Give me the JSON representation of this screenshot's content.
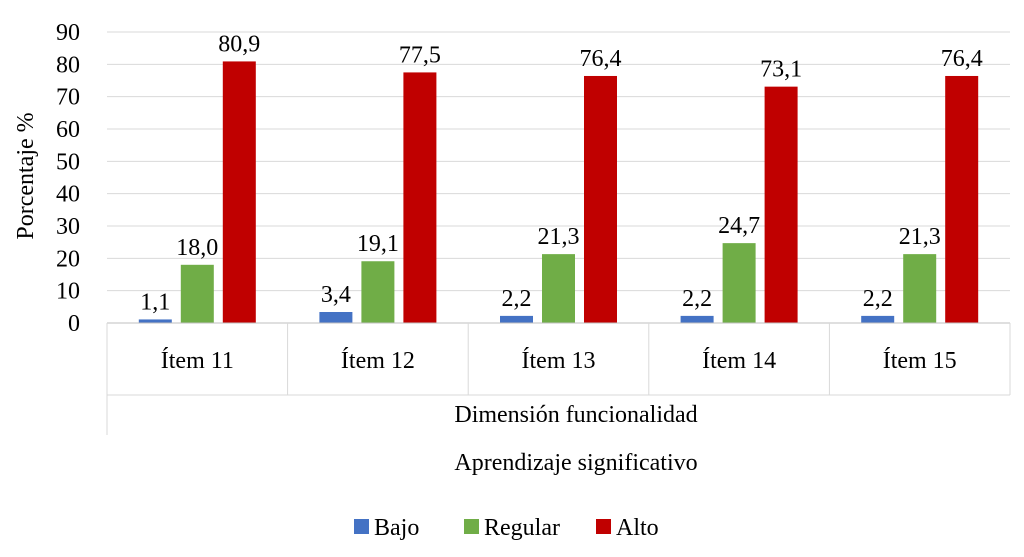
{
  "chart_data": {
    "type": "bar",
    "categories": [
      "Ítem 11",
      "Ítem 12",
      "Ítem 13",
      "Ítem 14",
      "Ítem 15"
    ],
    "series": [
      {
        "name": "Bajo",
        "color": "#4472C4",
        "values": [
          1.1,
          3.4,
          2.2,
          2.2,
          2.2
        ],
        "labels": [
          "1,1",
          "3,4",
          "2,2",
          "2,2",
          "2,2"
        ]
      },
      {
        "name": "Regular",
        "color": "#70AD47",
        "values": [
          18.0,
          19.1,
          21.3,
          24.7,
          21.3
        ],
        "labels": [
          "18,0",
          "19,1",
          "21,3",
          "24,7",
          "21,3"
        ]
      },
      {
        "name": "Alto",
        "color": "#C00000",
        "values": [
          80.9,
          77.5,
          76.4,
          73.1,
          76.4
        ],
        "labels": [
          "80,9",
          "77,5",
          "76,4",
          "73,1",
          "76,4"
        ]
      }
    ],
    "ylabel": "Porcentaje %",
    "group_label": "Dimensión funcionalidad",
    "xlabel": "Aprendizaje significativo",
    "ylim": [
      0,
      90
    ],
    "yticks": [
      0,
      10,
      20,
      30,
      40,
      50,
      60,
      70,
      80,
      90
    ],
    "grid": true,
    "legend_position": "bottom"
  }
}
